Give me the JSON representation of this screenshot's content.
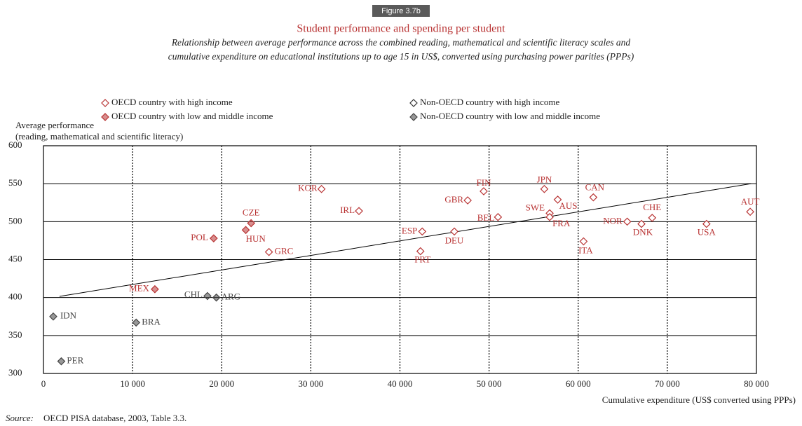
{
  "chart_data": {
    "type": "scatter",
    "figure_label": "Figure 3.7b",
    "title": "Student performance and spending per student",
    "subtitle": [
      "Relationship between average performance across the combined reading, mathematical and scientific literacy scales and",
      "cumulative expenditure on educational institutions up to age 15 in US$, converted using purchasing power parities (PPPs)"
    ],
    "ylabel": [
      "Average performance",
      "(reading, mathematical and scientific literacy)"
    ],
    "xlabel": "Cumulative expenditure (US$ converted using PPPs)",
    "source_prefix": "Source:",
    "source": "OECD PISA database, 2003, Table 3.3.",
    "xlim": [
      0,
      80000
    ],
    "ylim": [
      300,
      600
    ],
    "xticks": [
      0,
      {
        "value": 10000,
        "label": "10 000"
      },
      {
        "value": 20000,
        "label": "20 000"
      },
      {
        "value": 30000,
        "label": "30 000"
      },
      {
        "value": 40000,
        "label": "40 000"
      },
      {
        "value": 50000,
        "label": "50 000"
      },
      {
        "value": 60000,
        "label": "60 000"
      },
      {
        "value": 70000,
        "label": "70 000"
      },
      {
        "value": 80000,
        "label": "80 000"
      }
    ],
    "yticks": [
      300,
      350,
      400,
      450,
      500,
      550,
      600
    ],
    "grid": true,
    "series": [
      {
        "name": "OECD country with high income",
        "color": "#b83232",
        "filled": false,
        "labels": [
          "KOR",
          "FIN",
          "JPN",
          "CAN",
          "AUS",
          "GBR",
          "IRL",
          "AUT",
          "CHE",
          "SWE",
          "FRA",
          "BEL",
          "NOR",
          "DNK",
          "USA",
          "ESP",
          "DEU",
          "ITA",
          "GRC",
          "PRT"
        ],
        "x": [
          31200,
          49400,
          56200,
          61700,
          57700,
          47600,
          35400,
          79300,
          68300,
          56800,
          56800,
          51000,
          65500,
          67100,
          74400,
          42500,
          46100,
          60600,
          25300,
          42300
        ],
        "values": [
          543,
          540,
          543,
          532,
          529,
          528,
          514,
          513,
          505,
          511,
          506,
          506,
          500,
          497,
          497,
          487,
          487,
          474,
          460,
          461
        ]
      },
      {
        "name": "OECD country with low and middle income",
        "color": "#b83232",
        "filled": true,
        "labels": [
          "CZE",
          "HUN",
          "POL",
          "MEX"
        ],
        "x": [
          23300,
          22700,
          19100,
          12500
        ],
        "values": [
          498,
          489,
          478,
          411
        ]
      },
      {
        "name": "Non-OECD country with high income",
        "color": "#333333",
        "filled": false,
        "labels": [],
        "x": [],
        "values": []
      },
      {
        "name": "Non-OECD country with low and middle income",
        "color": "#444444",
        "filled": true,
        "labels": [
          "CHL",
          "ARG",
          "IDN",
          "BRA",
          "PER"
        ],
        "x": [
          18400,
          19400,
          1100,
          10400,
          2000
        ],
        "values": [
          402,
          400,
          375,
          367,
          316
        ]
      }
    ],
    "trend": {
      "x": [
        1800,
        79400
      ],
      "y": [
        401.5,
        550
      ]
    }
  }
}
